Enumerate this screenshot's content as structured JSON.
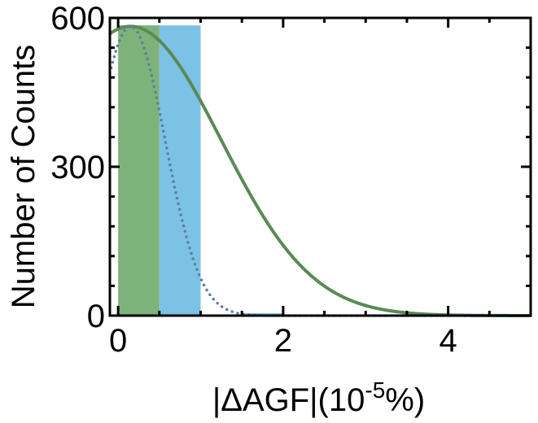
{
  "chart_data": {
    "type": "bar",
    "title": "",
    "xlabel_parts": {
      "pre": "|ΔAGF|(10",
      "sup": "-5",
      "post": "%)"
    },
    "ylabel": "Number of Counts",
    "xlim": [
      -0.1,
      5.0
    ],
    "ylim": [
      0,
      600
    ],
    "xticks": [
      0,
      2,
      4
    ],
    "yticks": [
      0,
      300,
      600
    ],
    "xminor": [
      0.5,
      1,
      1.5,
      2.5,
      3,
      3.5,
      4.5
    ],
    "yminor": [
      60,
      120,
      180,
      240,
      360,
      420,
      480,
      540
    ],
    "series": [
      {
        "kind": "bars",
        "color": "#7db27a",
        "bins": [
          {
            "x0": 0.0,
            "x1": 0.5,
            "value": 585
          },
          {
            "x0": 1.0,
            "x1": 1.5,
            "value": 2
          },
          {
            "x0": 2.0,
            "x1": 2.5,
            "value": 2
          },
          {
            "x0": 3.5,
            "x1": 4.0,
            "value": 1
          }
        ]
      },
      {
        "kind": "bars",
        "color": "#7cc2e6",
        "bins": [
          {
            "x0": 0.5,
            "x1": 1.0,
            "value": 585
          },
          {
            "x0": 1.5,
            "x1": 2.0,
            "value": 5
          },
          {
            "x0": 4.0,
            "x1": 4.5,
            "value": 1
          }
        ]
      },
      {
        "kind": "curve",
        "style": "solid",
        "color": "#5a8a55",
        "gaussian": {
          "amplitude": 583,
          "mean": 0.15,
          "sigma": 1.1
        }
      },
      {
        "kind": "curve",
        "style": "dotted",
        "color": "#5b7fa0",
        "gaussian": {
          "amplitude": 583,
          "mean": 0.15,
          "sigma": 0.42
        }
      }
    ]
  }
}
